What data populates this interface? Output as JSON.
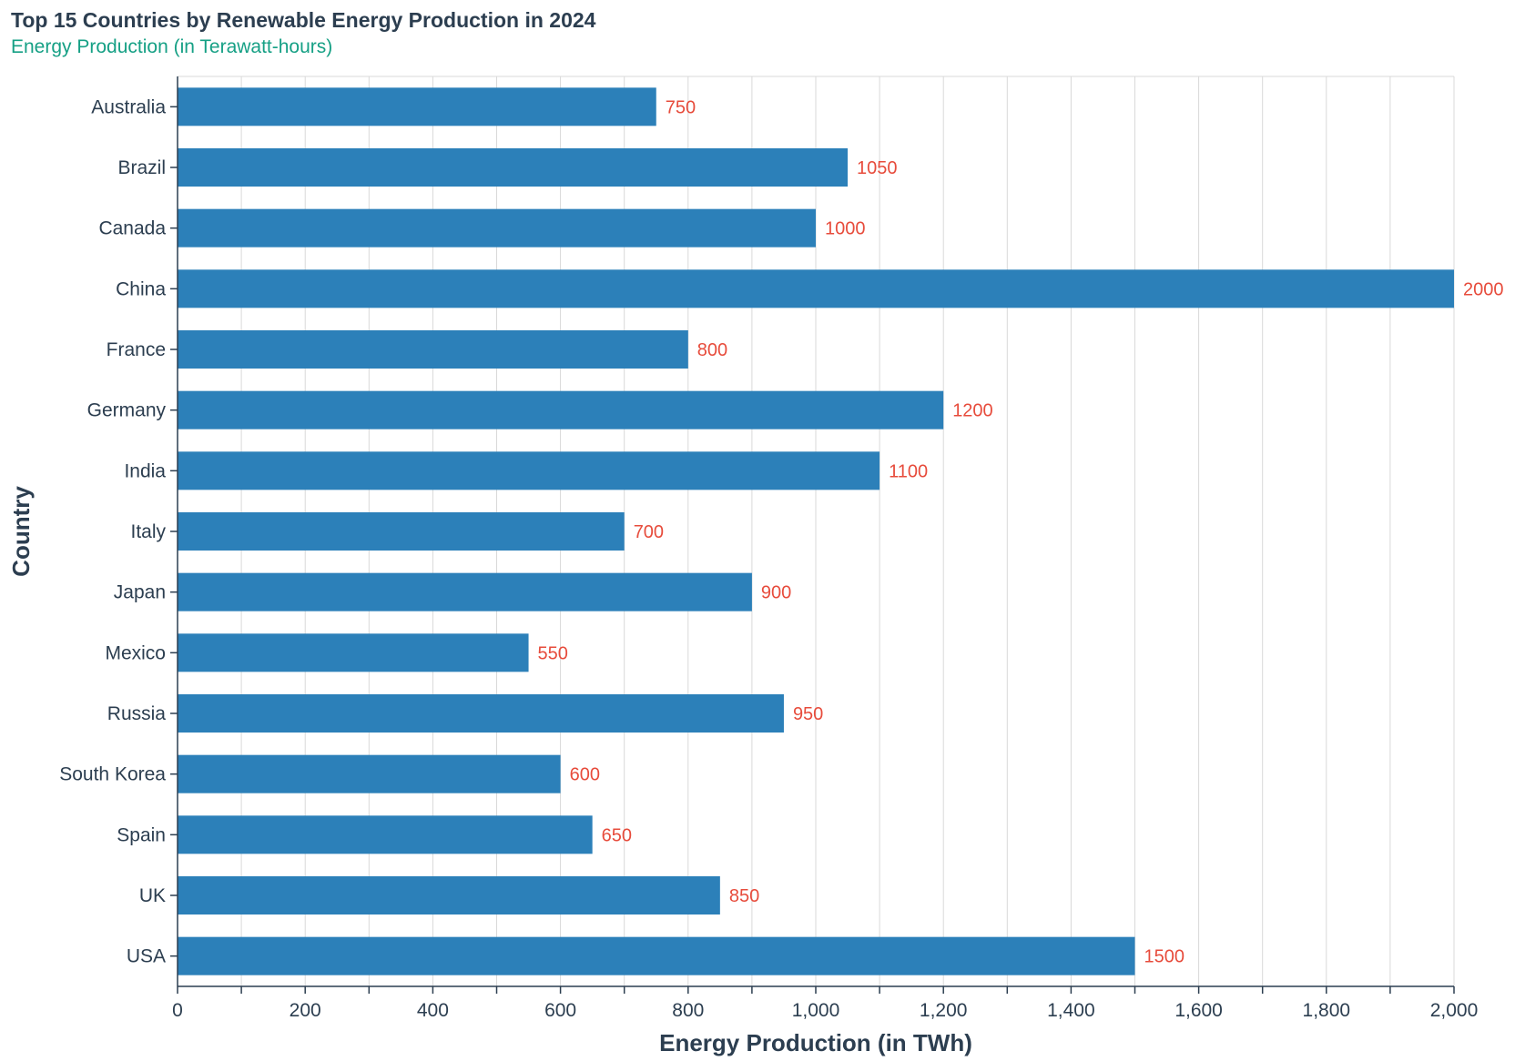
{
  "colors": {
    "bar": "#2c80b9",
    "data_label": "#e74c3c",
    "title": "#2c3e50",
    "subtitle": "#16a085",
    "text": "#2c3e50",
    "grid": "#d9d9d9",
    "axis": "#2c3e50"
  },
  "chart_data": {
    "type": "bar",
    "orientation": "horizontal",
    "title": "Top 15 Countries by Renewable Energy Production in 2024",
    "subtitle": "Energy Production (in Terawatt-hours)",
    "xlabel": "Energy Production (in TWh)",
    "ylabel": "Country",
    "xlim": [
      0,
      2000
    ],
    "x_tick_values": [
      0,
      200,
      400,
      600,
      800,
      1000,
      1200,
      1400,
      1600,
      1800,
      2000
    ],
    "x_tick_labels": [
      "0",
      "200",
      "400",
      "600",
      "800",
      "1,000",
      "1,200",
      "1,400",
      "1,600",
      "1,800",
      "2,000"
    ],
    "minor_tick_step": 100,
    "grid": true,
    "categories": [
      "Australia",
      "Brazil",
      "Canada",
      "China",
      "France",
      "Germany",
      "India",
      "Italy",
      "Japan",
      "Mexico",
      "Russia",
      "South Korea",
      "Spain",
      "UK",
      "USA"
    ],
    "values": [
      750,
      1050,
      1000,
      2000,
      800,
      1200,
      1100,
      700,
      900,
      550,
      950,
      600,
      650,
      850,
      1500
    ],
    "data_labels": [
      "750",
      "1050",
      "1000",
      "2000",
      "800",
      "1200",
      "1100",
      "700",
      "900",
      "550",
      "950",
      "600",
      "650",
      "850",
      "1500"
    ]
  }
}
